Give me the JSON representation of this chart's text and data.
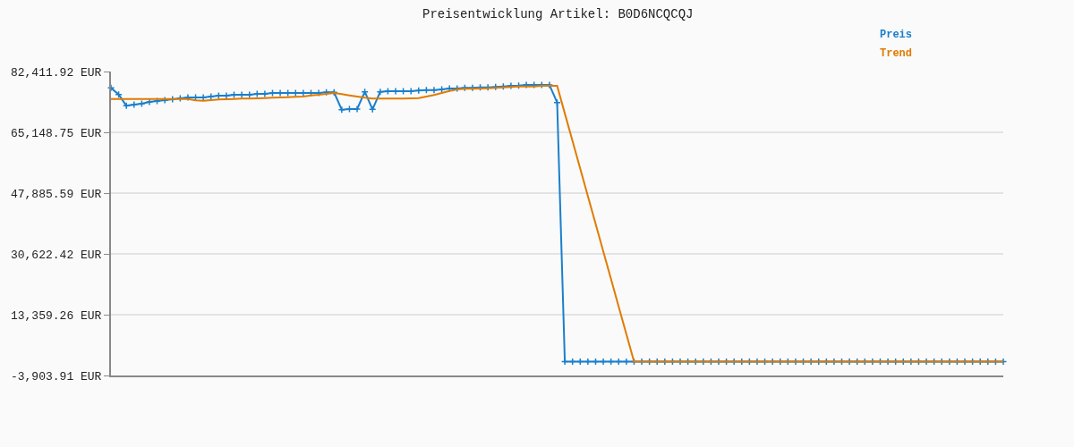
{
  "chart_data": {
    "type": "line",
    "title": "Preisentwicklung Artikel: B0D6NCQCQJ",
    "categories": [
      null,
      null,
      null,
      null,
      null,
      null,
      null,
      null,
      null,
      null,
      null,
      null,
      null,
      null,
      null,
      null,
      null,
      null,
      null,
      null,
      null,
      null,
      null,
      null,
      null,
      null,
      null,
      null,
      null,
      null,
      null,
      null,
      null,
      null,
      null,
      null,
      null,
      null,
      null,
      null,
      null,
      null,
      null,
      null,
      null,
      null,
      null,
      null,
      null,
      null,
      null,
      null,
      null,
      null,
      null,
      null,
      null,
      null,
      null,
      null,
      null,
      null,
      null,
      null,
      null,
      null,
      null,
      null,
      null,
      null,
      null,
      null,
      null,
      null,
      null,
      null,
      null,
      null,
      null,
      null,
      null,
      null,
      null,
      null,
      null,
      null,
      null,
      null,
      null,
      null,
      null,
      null,
      null,
      null,
      null,
      null,
      null,
      null,
      null,
      null,
      null,
      null,
      null,
      null,
      null,
      null,
      null,
      null,
      null,
      null,
      null,
      null,
      null,
      null,
      null,
      null,
      null
    ],
    "series": [
      {
        "name": "Preis",
        "color": "#1a7fcc",
        "marker": "cross",
        "values": [
          77758,
          75896,
          72681,
          73019,
          73273,
          73781,
          74035,
          74288,
          74542,
          74796,
          75050,
          75050,
          75050,
          75304,
          75558,
          75558,
          75812,
          75812,
          75812,
          76066,
          76066,
          76319,
          76319,
          76319,
          76319,
          76319,
          76319,
          76319,
          76489,
          76489,
          71580,
          71750,
          71750,
          76658,
          71665,
          76658,
          76827,
          76827,
          76827,
          76827,
          76996,
          77165,
          77165,
          77335,
          77588,
          77588,
          77758,
          77758,
          77927,
          77927,
          78012,
          78181,
          78350,
          78435,
          78604,
          78604,
          78604,
          78604,
          73611,
          0,
          0,
          0,
          0,
          0,
          0,
          0,
          0,
          0,
          0,
          0,
          0,
          0,
          0,
          0,
          0,
          0,
          0,
          0,
          0,
          0,
          0,
          0,
          0,
          0,
          0,
          0,
          0,
          0,
          0,
          0,
          0,
          0,
          0,
          0,
          0,
          0,
          0,
          0,
          0,
          0,
          0,
          0,
          0,
          0,
          0,
          0,
          0,
          0,
          0,
          0,
          0,
          0,
          0,
          0,
          0,
          0,
          0
        ]
      },
      {
        "name": "Trend",
        "color": "#e07b00",
        "marker": "none",
        "values": [
          74627,
          74627,
          74627,
          74627,
          74627,
          74627,
          74627,
          74627,
          74627,
          74627,
          74627,
          74204,
          74119,
          74288,
          74458,
          74542,
          74627,
          74712,
          74712,
          74796,
          74881,
          74966,
          75050,
          75135,
          75219,
          75304,
          75642,
          75812,
          76066,
          76319,
          75981,
          75642,
          75304,
          74966,
          74712,
          74712,
          74712,
          74712,
          74712,
          74796,
          74881,
          75304,
          75727,
          76319,
          76911,
          77335,
          77504,
          77504,
          77588,
          77673,
          77758,
          77927,
          78012,
          78181,
          78181,
          78181,
          78350,
          78350,
          78350,
          70515,
          62680,
          54845,
          47010,
          39175,
          31340,
          23505,
          15670,
          7835,
          0,
          0,
          0,
          0,
          0,
          0,
          0,
          0,
          0,
          0,
          0,
          0,
          0,
          0,
          0,
          0,
          0,
          0,
          0,
          0,
          0,
          0,
          0,
          0,
          0,
          0,
          0,
          0,
          0,
          0,
          0,
          0,
          0,
          0,
          0,
          0,
          0,
          0,
          0,
          0,
          0,
          0,
          0,
          0,
          0,
          0,
          0,
          0,
          0
        ]
      }
    ],
    "ylim": [
      -3903.91,
      82411.92
    ],
    "yticks": [
      {
        "value": 82411.92,
        "label": "82,411.92 EUR"
      },
      {
        "value": 65148.75,
        "label": "65,148.75 EUR"
      },
      {
        "value": 47885.59,
        "label": "47,885.59 EUR"
      },
      {
        "value": 30622.42,
        "label": "30,622.42 EUR"
      },
      {
        "value": 13359.26,
        "label": "13,359.26 EUR"
      },
      {
        "value": -3903.91,
        "label": "-3,903.91 EUR"
      }
    ],
    "grid": "y",
    "legend": "top right",
    "tick_labels": "y",
    "line_style": "solid"
  }
}
